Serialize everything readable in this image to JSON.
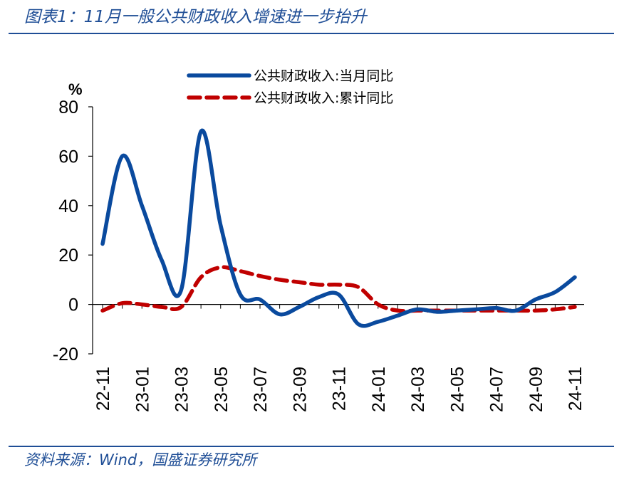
{
  "header": {
    "title": "图表1：11月一般公共财政收入增速进一步抬升"
  },
  "footer": {
    "source": "资料来源：Wind，国盛证券研究所"
  },
  "colors": {
    "accent": "#1f4e96",
    "series_monthly": "#0a4a9e",
    "series_cumulative": "#c00000"
  },
  "chart_data": {
    "type": "line",
    "ylabel": "%",
    "ylim": [
      -20,
      80
    ],
    "yticks": [
      -20,
      0,
      20,
      40,
      60,
      80
    ],
    "xticks": [
      "22-11",
      "23-01",
      "23-03",
      "23-05",
      "23-07",
      "23-09",
      "23-11",
      "24-01",
      "24-03",
      "24-05",
      "24-07",
      "24-09",
      "24-11"
    ],
    "x": [
      "22-11",
      "22-12",
      "23-01",
      "23-02",
      "23-03",
      "23-04",
      "23-05",
      "23-06",
      "23-07",
      "23-08",
      "23-09",
      "23-10",
      "23-11",
      "23-12",
      "24-01",
      "24-02",
      "24-03",
      "24-04",
      "24-05",
      "24-06",
      "24-07",
      "24-08",
      "24-09",
      "24-10",
      "24-11"
    ],
    "legend_position": "top",
    "grid": false,
    "series": [
      {
        "name": "公共财政收入:当月同比",
        "style": "solid",
        "values": [
          24.5,
          60,
          40,
          18,
          6,
          70,
          32,
          4,
          2,
          -4,
          -1,
          3,
          4,
          -8,
          -7,
          -4.5,
          -2,
          -3,
          -2.5,
          -2,
          -1.5,
          -2.5,
          2,
          5,
          11
        ]
      },
      {
        "name": "公共财政收入:累计同比",
        "style": "dashed",
        "values": [
          -2.5,
          0.5,
          0,
          -1,
          -1,
          11,
          15,
          13.5,
          11.5,
          10,
          9,
          8,
          8,
          7,
          0,
          -2.5,
          -2.5,
          -2.5,
          -2.5,
          -2.5,
          -2.5,
          -2.5,
          -2.5,
          -2,
          -1
        ]
      }
    ]
  }
}
